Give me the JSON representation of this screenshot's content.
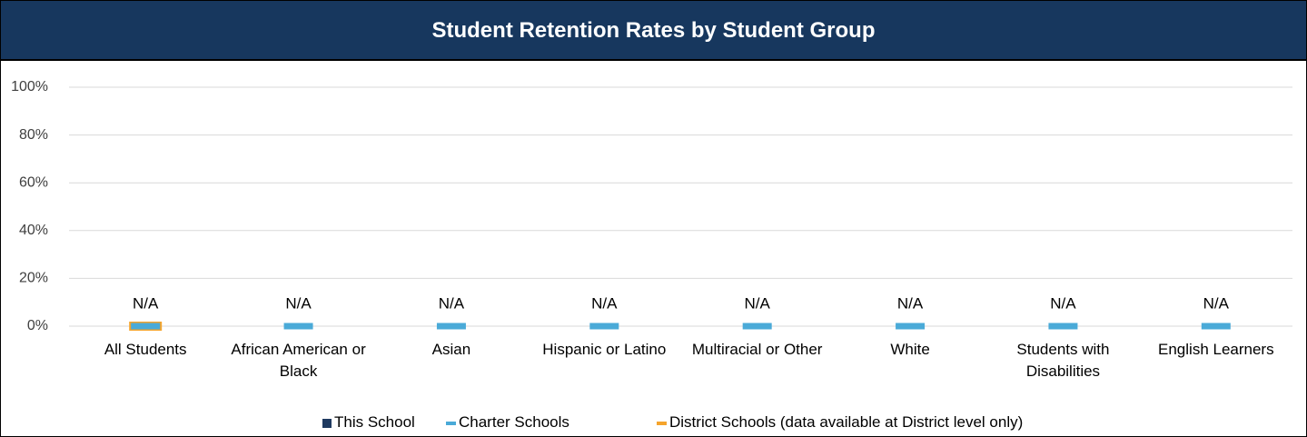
{
  "chart_data": {
    "type": "bar",
    "title": "Student Retention Rates by Student Group",
    "categories": [
      "All Students",
      "African American or Black",
      "Asian",
      "Hispanic or Latino",
      "Multiracial or Other",
      "White",
      "Students with Disabilities",
      "English Learners"
    ],
    "series": [
      {
        "name": "This School",
        "color": "#1f3a60",
        "marker": "bar",
        "values": [
          null,
          null,
          null,
          null,
          null,
          null,
          null,
          null
        ],
        "value_labels": [
          "N/A",
          "N/A",
          "N/A",
          "N/A",
          "N/A",
          "N/A",
          "N/A",
          "N/A"
        ]
      },
      {
        "name": "Charter Schools",
        "color": "#4aaad8",
        "marker": "dash",
        "values": [
          0,
          0,
          0,
          0,
          0,
          0,
          0,
          0
        ]
      },
      {
        "name": "District Schools (data available at District level only)",
        "color": "#f5a42c",
        "marker": "dash",
        "values": [
          0,
          null,
          null,
          null,
          null,
          null,
          null,
          null
        ]
      }
    ],
    "ylim": [
      0,
      100
    ],
    "yticks": [
      {
        "value": 0,
        "label": "0%"
      },
      {
        "value": 20,
        "label": "20%"
      },
      {
        "value": 40,
        "label": "40%"
      },
      {
        "value": 60,
        "label": "60%"
      },
      {
        "value": 80,
        "label": "80%"
      },
      {
        "value": 100,
        "label": "100%"
      }
    ],
    "grid": true,
    "legend": "bottom"
  }
}
